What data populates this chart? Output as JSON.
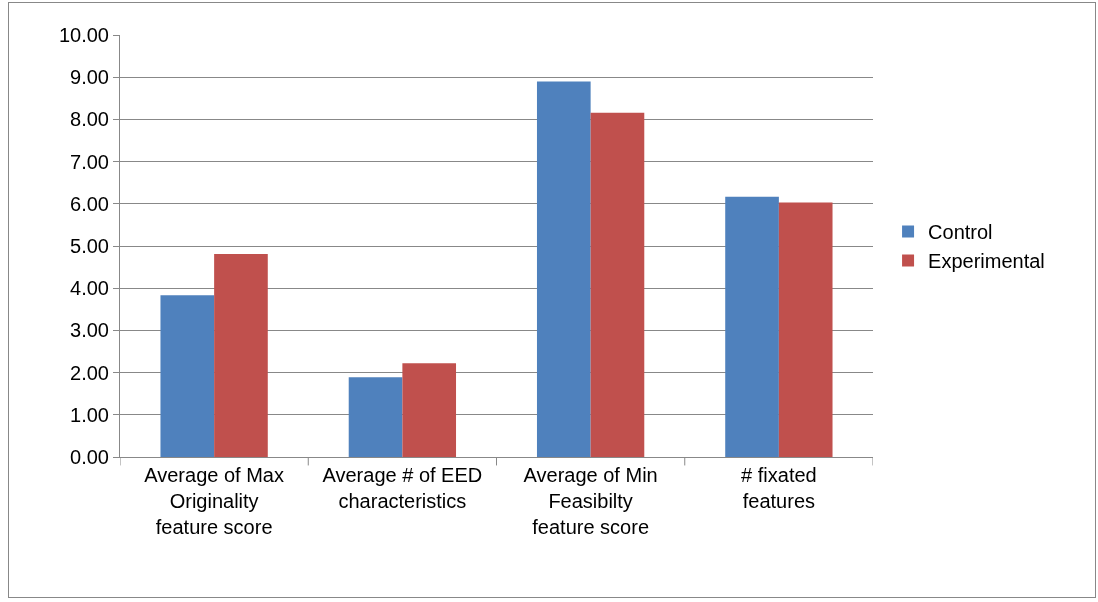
{
  "chart_data": {
    "type": "bar",
    "categories": [
      "Average of Max Originality feature score",
      "Average # of EED characteristics",
      "Average of Min Feasibilty feature score",
      "# fixated features"
    ],
    "series": [
      {
        "name": "Control",
        "color": "#4f81bd",
        "values": [
          3.83,
          1.89,
          8.9,
          6.17
        ]
      },
      {
        "name": "Experimental",
        "color": "#c0504d",
        "values": [
          4.81,
          2.22,
          8.16,
          6.03
        ]
      }
    ],
    "ylim": [
      0,
      10
    ],
    "yticks": [
      {
        "value": 0,
        "label": "0.00"
      },
      {
        "value": 1,
        "label": "1.00"
      },
      {
        "value": 2,
        "label": "2.00"
      },
      {
        "value": 3,
        "label": "3.00"
      },
      {
        "value": 4,
        "label": "4.00"
      },
      {
        "value": 5,
        "label": "5.00"
      },
      {
        "value": 6,
        "label": "6.00"
      },
      {
        "value": 7,
        "label": "7.00"
      },
      {
        "value": 8,
        "label": "8.00"
      },
      {
        "value": 9,
        "label": "9.00"
      },
      {
        "value": 10,
        "label": "10.00"
      }
    ],
    "grid": "y",
    "legend": "right"
  }
}
